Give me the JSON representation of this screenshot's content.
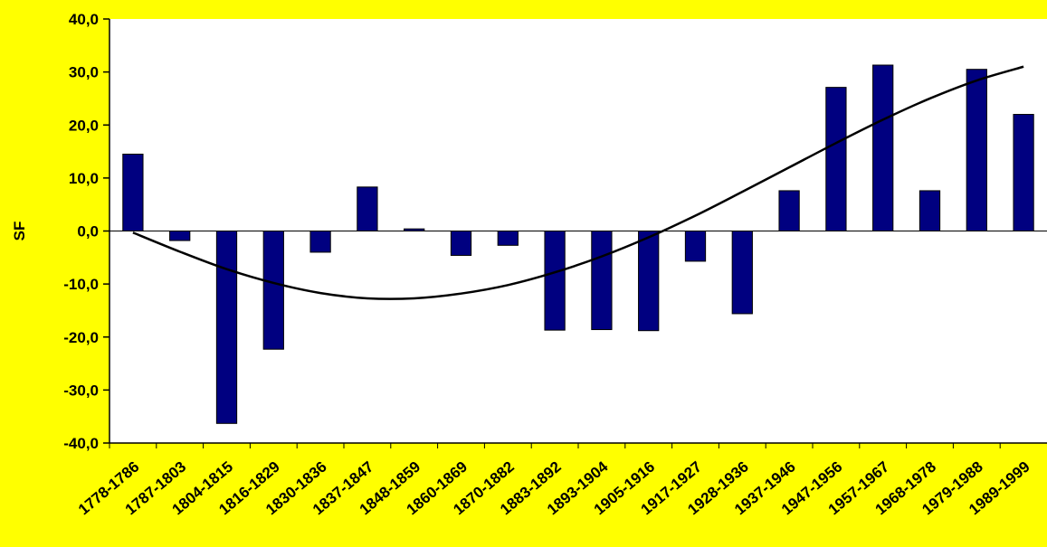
{
  "chart_data": {
    "type": "bar",
    "title": "",
    "xlabel": "",
    "ylabel": "SF",
    "ylim": [
      -40,
      40
    ],
    "yticks": [
      40,
      30,
      20,
      10,
      0,
      -10,
      -20,
      -30,
      -40
    ],
    "ytick_labels": [
      "40,0",
      "30,0",
      "20,0",
      "10,0",
      "0,0",
      "-10,0",
      "-20,0",
      "-30,0",
      "-40,0"
    ],
    "categories": [
      "1778-1786",
      "1787-1803",
      "1804-1815",
      "1816-1829",
      "1830-1836",
      "1837-1847",
      "1848-1859",
      "1860-1869",
      "1870-1882",
      "1883-1892",
      "1893-1904",
      "1905-1916",
      "1917-1927",
      "1928-1936",
      "1937-1946",
      "1947-1956",
      "1957-1967",
      "1968-1978",
      "1979-1988",
      "1989-1999"
    ],
    "series": [
      {
        "type": "bar",
        "values": [
          14.5,
          -1.8,
          -36.3,
          -22.3,
          -4.0,
          8.3,
          0.4,
          -4.6,
          -2.7,
          -18.7,
          -18.6,
          -18.8,
          -5.7,
          -15.6,
          7.6,
          27.1,
          31.3,
          7.6,
          30.5,
          22.0
        ]
      },
      {
        "type": "line",
        "values": [
          -0.3,
          -3.9,
          -7.2,
          -9.8,
          -11.7,
          -12.7,
          -12.7,
          -11.8,
          -10.2,
          -7.8,
          -4.8,
          -1.2,
          2.9,
          7.4,
          12.0,
          16.6,
          21.0,
          25.0,
          28.4,
          31.0
        ]
      }
    ],
    "grid": false,
    "legend": "none",
    "colors": {
      "background": "#FFFF00",
      "plot_area": "#FFFFFF",
      "bar": "#000080",
      "line": "#000000"
    }
  }
}
